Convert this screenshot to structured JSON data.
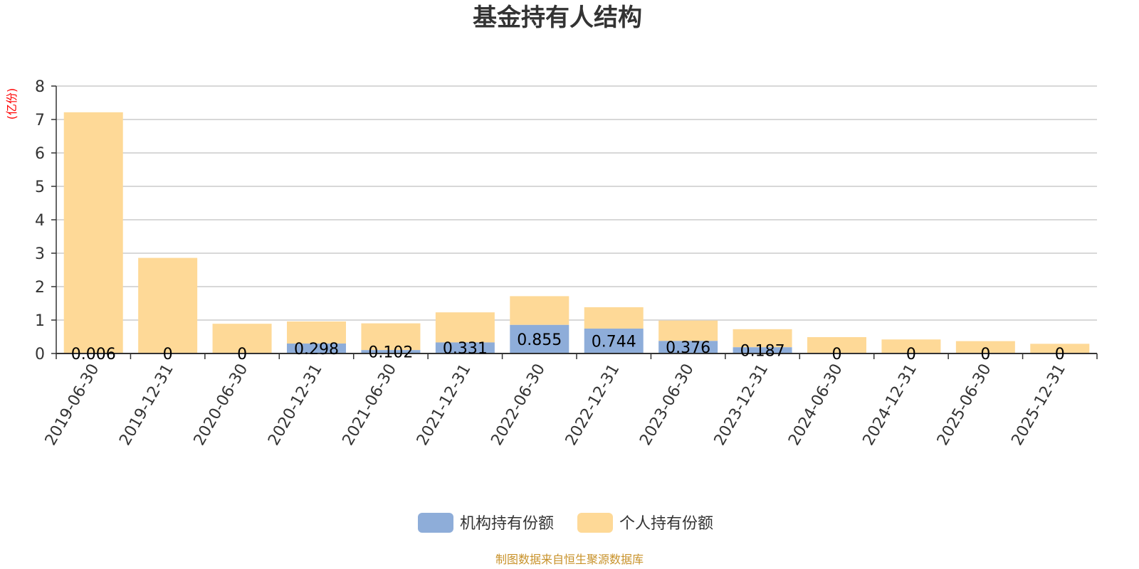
{
  "chart_data": {
    "type": "bar",
    "stacked": true,
    "title": "基金持有人结构",
    "unit_label": "(亿份)",
    "categories": [
      "2019-06-30",
      "2019-12-31",
      "2020-06-30",
      "2020-12-31",
      "2021-06-30",
      "2021-12-31",
      "2022-06-30",
      "2022-12-31",
      "2023-06-30",
      "2023-12-31",
      "2024-06-30",
      "2024-12-31",
      "2025-06-30",
      "2025-12-31"
    ],
    "series": [
      {
        "name": "机构持有份额",
        "color": "#8eadd9",
        "values": [
          0.006,
          0,
          0,
          0.298,
          0.102,
          0.331,
          0.855,
          0.744,
          0.376,
          0.187,
          0,
          0,
          0,
          0
        ],
        "labels": [
          "0.006",
          "0",
          "0",
          "0.298",
          "0.102",
          "0.331",
          "0.855",
          "0.744",
          "0.376",
          "0.187",
          "0",
          "0",
          "0",
          "0"
        ]
      },
      {
        "name": "个人持有份额",
        "color": "#fed997",
        "values": [
          7.21,
          2.86,
          0.89,
          0.66,
          0.8,
          0.9,
          0.86,
          0.64,
          0.61,
          0.54,
          0.49,
          0.42,
          0.37,
          0.29
        ]
      }
    ],
    "ylim": [
      0,
      8
    ],
    "yticks": [
      0,
      1,
      2,
      3,
      4,
      5,
      6,
      7,
      8
    ],
    "grid": true,
    "legend_position": "bottom-center"
  },
  "colors": {
    "unit_label": "#ff0000",
    "source": "#c8922a",
    "grid": "#cccccc",
    "axis": "#333333"
  },
  "source_note": "制图数据来自恒生聚源数据库"
}
